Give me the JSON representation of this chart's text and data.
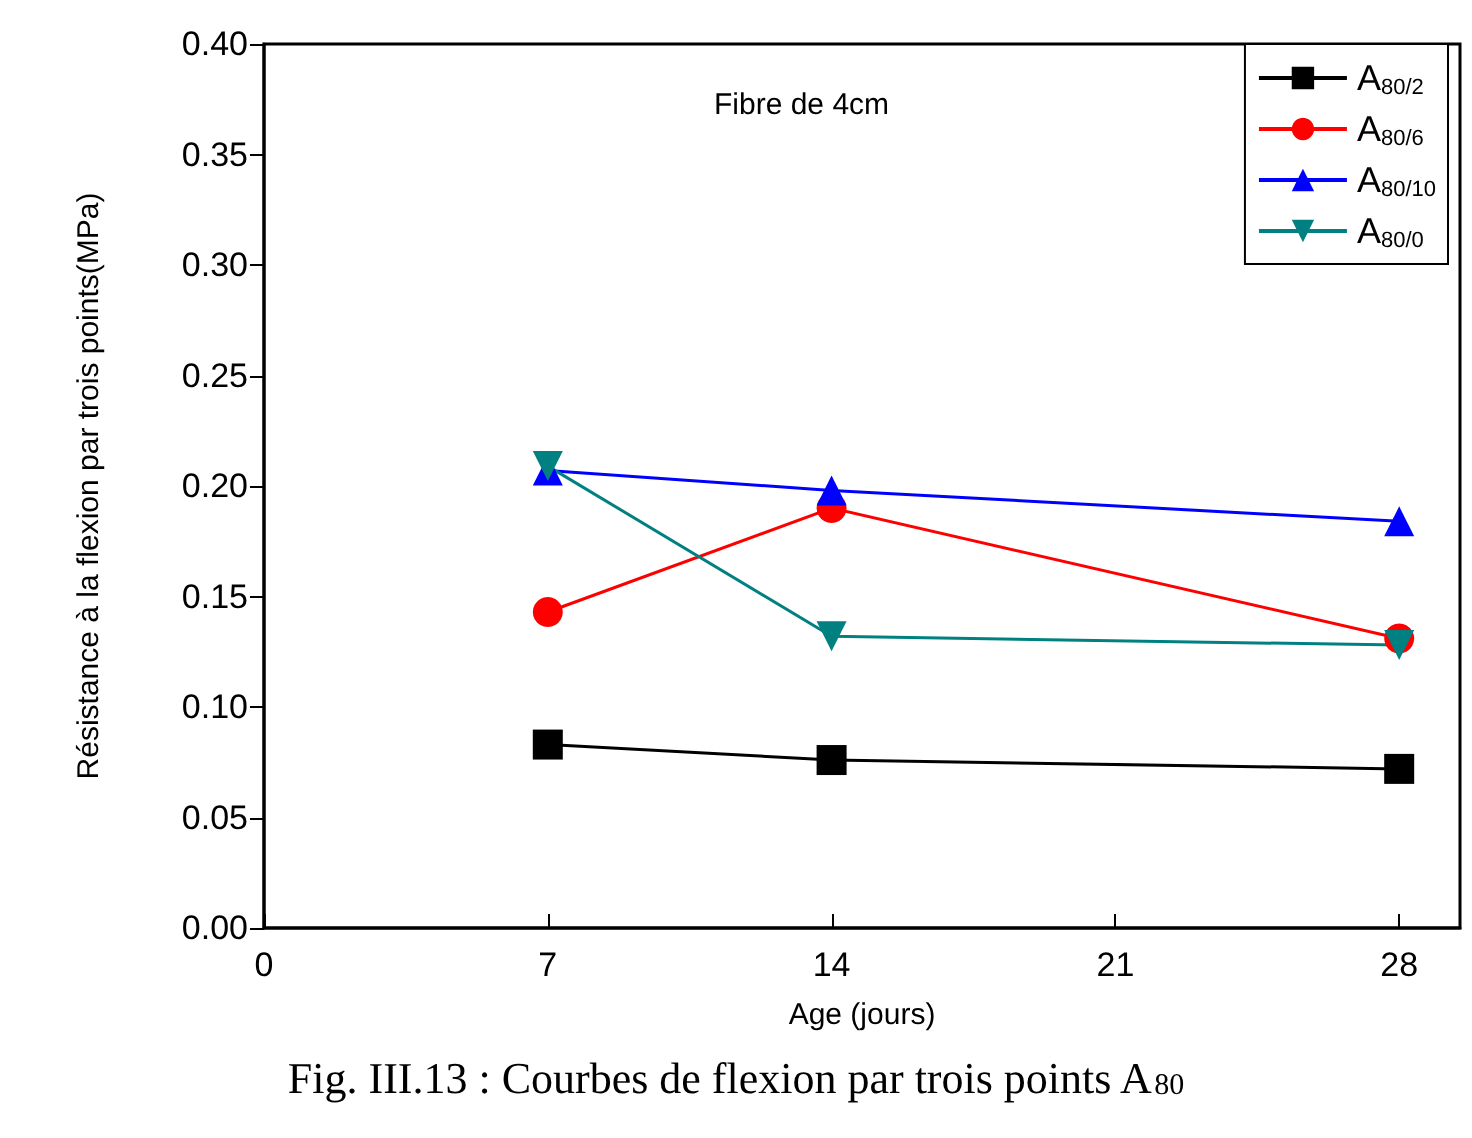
{
  "chart_data": {
    "type": "line",
    "title": "Fibre de 4cm",
    "xlabel": "Age (jours)",
    "ylabel": "Résistance à la flexion par trois points(MPa)",
    "annotations": [
      "Fig. III.13 : Courbes de flexion par trois points A$_{80}$"
    ],
    "x": [
      7,
      14,
      28
    ],
    "series": [
      {
        "name": "A$_{80/2}$",
        "color": "#000000",
        "marker": "square",
        "values": [
          0.083,
          0.076,
          0.072
        ]
      },
      {
        "name": "A$_{80/6}$",
        "color": "#ff0000",
        "marker": "circle",
        "values": [
          0.143,
          0.19,
          0.131
        ]
      },
      {
        "name": "A$_{80/10}$",
        "color": "#0000ff",
        "marker": "triangle",
        "values": [
          0.207,
          0.198,
          0.184
        ]
      },
      {
        "name": "A$_{80/0}$",
        "color": "#008080",
        "marker": "triangle-down",
        "values": [
          0.209,
          0.132,
          0.128
        ]
      }
    ],
    "xlim": [
      0,
      29.5
    ],
    "xticks": [
      0,
      7,
      14,
      21,
      28
    ],
    "ylim": [
      0,
      0.4
    ],
    "yticks": [
      {
        "value": 0,
        "label": "0.00"
      },
      {
        "value": 0.05,
        "label": "0.05"
      },
      {
        "value": 0.1,
        "label": "0.10"
      },
      {
        "value": 0.15,
        "label": "0.15"
      },
      {
        "value": 0.2,
        "label": "0.20"
      },
      {
        "value": 0.25,
        "label": "0.25"
      },
      {
        "value": 0.3,
        "label": "0.30"
      },
      {
        "value": 0.35,
        "label": "0.35"
      },
      {
        "value": 0.4,
        "label": "0.40"
      }
    ],
    "grid": false,
    "legend": "top right",
    "line_style": "solid"
  }
}
